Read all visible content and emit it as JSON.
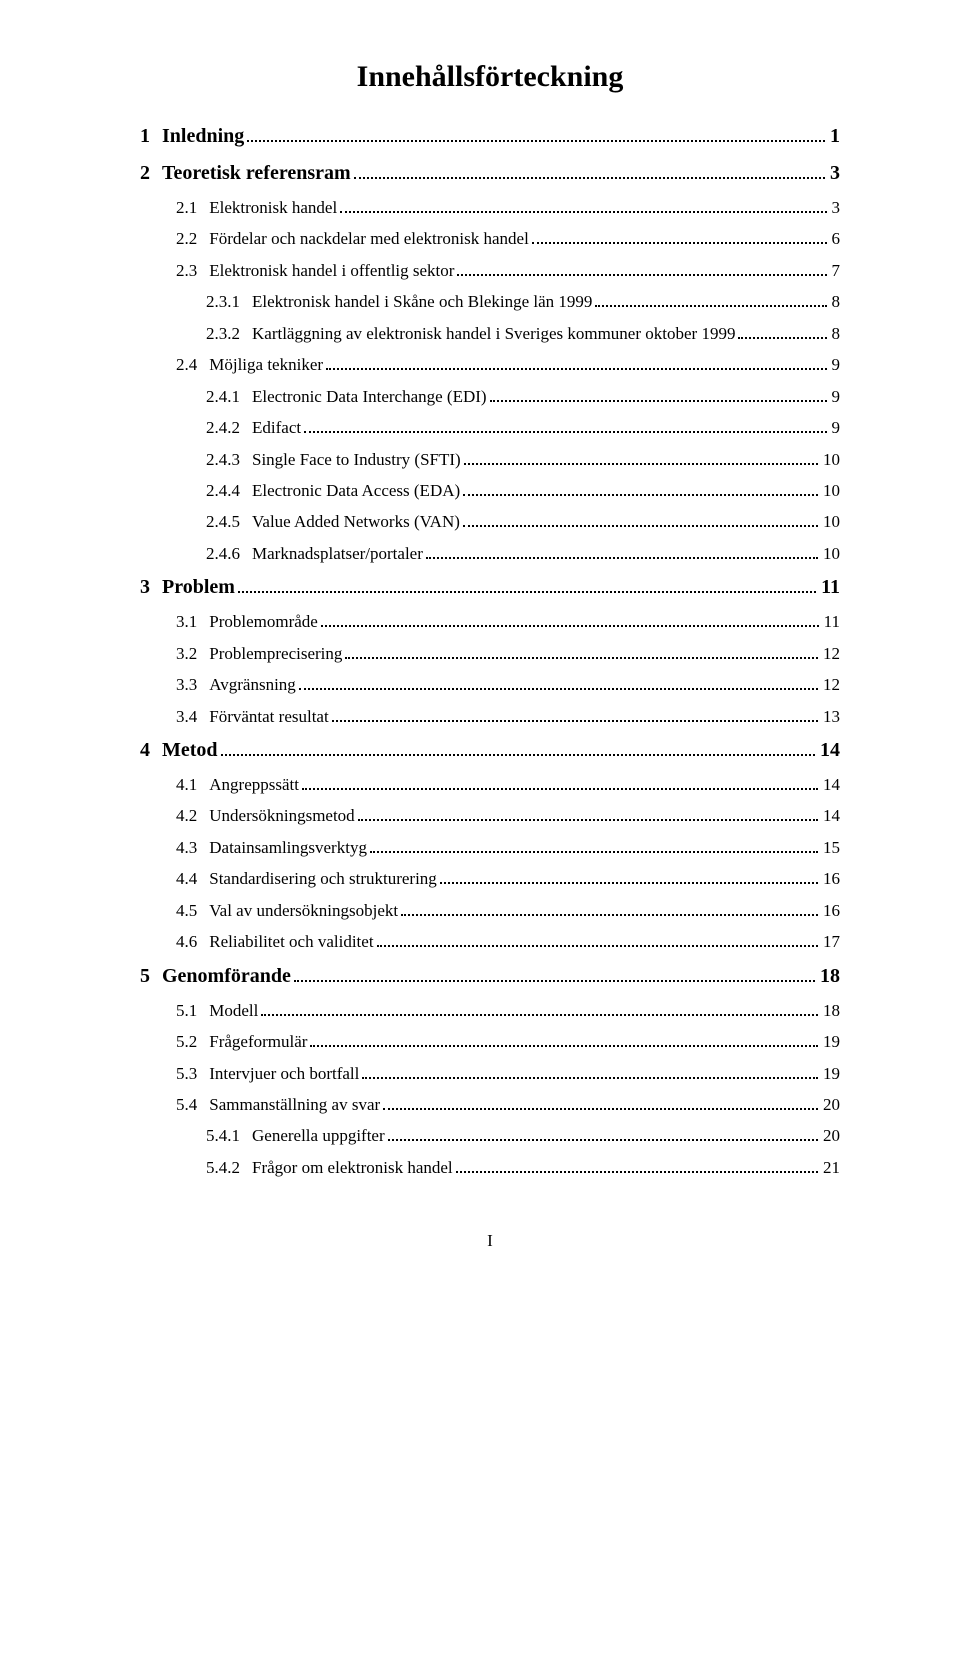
{
  "title": "Innehållsförteckning",
  "footer": "I",
  "colors": {
    "text": "#000000",
    "background": "#ffffff"
  },
  "typography": {
    "family": "Times New Roman",
    "title_size_pt": 22,
    "l0_size_pt": 15,
    "l1_size_pt": 13
  },
  "entries": [
    {
      "level": 0,
      "num": "1",
      "text": "Inledning",
      "page": "1"
    },
    {
      "level": 0,
      "num": "2",
      "text": "Teoretisk referensram",
      "page": "3"
    },
    {
      "level": 1,
      "num": "2.1",
      "text": "Elektronisk handel",
      "page": "3"
    },
    {
      "level": 1,
      "num": "2.2",
      "text": "Fördelar och nackdelar med elektronisk handel",
      "page": "6"
    },
    {
      "level": 1,
      "num": "2.3",
      "text": "Elektronisk handel i offentlig sektor",
      "page": "7"
    },
    {
      "level": 2,
      "num": "2.3.1",
      "text": "Elektronisk handel i Skåne och Blekinge län 1999",
      "page": "8"
    },
    {
      "level": 2,
      "num": "2.3.2",
      "text": "Kartläggning av elektronisk handel i Sveriges kommuner oktober 1999",
      "page": "8"
    },
    {
      "level": 1,
      "num": "2.4",
      "text": "Möjliga tekniker",
      "page": "9"
    },
    {
      "level": 2,
      "num": "2.4.1",
      "text": "Electronic Data Interchange (EDI)",
      "page": "9"
    },
    {
      "level": 2,
      "num": "2.4.2",
      "text": "Edifact",
      "page": "9"
    },
    {
      "level": 2,
      "num": "2.4.3",
      "text": "Single Face to Industry (SFTI)",
      "page": "10"
    },
    {
      "level": 2,
      "num": "2.4.4",
      "text": "Electronic Data Access (EDA)",
      "page": "10"
    },
    {
      "level": 2,
      "num": "2.4.5",
      "text": "Value Added Networks (VAN)",
      "page": "10"
    },
    {
      "level": 2,
      "num": "2.4.6",
      "text": "Marknadsplatser/portaler",
      "page": "10"
    },
    {
      "level": 0,
      "num": "3",
      "text": "Problem",
      "page": "11"
    },
    {
      "level": 1,
      "num": "3.1",
      "text": "Problemområde",
      "page": "11"
    },
    {
      "level": 1,
      "num": "3.2",
      "text": "Problemprecisering",
      "page": "12"
    },
    {
      "level": 1,
      "num": "3.3",
      "text": "Avgränsning",
      "page": "12"
    },
    {
      "level": 1,
      "num": "3.4",
      "text": "Förväntat resultat",
      "page": "13"
    },
    {
      "level": 0,
      "num": "4",
      "text": "Metod",
      "page": "14"
    },
    {
      "level": 1,
      "num": "4.1",
      "text": "Angreppssätt",
      "page": "14"
    },
    {
      "level": 1,
      "num": "4.2",
      "text": "Undersökningsmetod",
      "page": "14"
    },
    {
      "level": 1,
      "num": "4.3",
      "text": "Datainsamlingsverktyg",
      "page": "15"
    },
    {
      "level": 1,
      "num": "4.4",
      "text": "Standardisering och strukturering",
      "page": "16"
    },
    {
      "level": 1,
      "num": "4.5",
      "text": "Val av undersökningsobjekt",
      "page": "16"
    },
    {
      "level": 1,
      "num": "4.6",
      "text": "Reliabilitet och validitet",
      "page": "17"
    },
    {
      "level": 0,
      "num": "5",
      "text": "Genomförande",
      "page": "18"
    },
    {
      "level": 1,
      "num": "5.1",
      "text": "Modell",
      "page": "18"
    },
    {
      "level": 1,
      "num": "5.2",
      "text": "Frågeformulär",
      "page": "19"
    },
    {
      "level": 1,
      "num": "5.3",
      "text": "Intervjuer och bortfall",
      "page": "19"
    },
    {
      "level": 1,
      "num": "5.4",
      "text": "Sammanställning av svar",
      "page": "20"
    },
    {
      "level": 2,
      "num": "5.4.1",
      "text": "Generella uppgifter",
      "page": "20"
    },
    {
      "level": 2,
      "num": "5.4.2",
      "text": "Frågor om elektronisk handel",
      "page": "21"
    }
  ]
}
